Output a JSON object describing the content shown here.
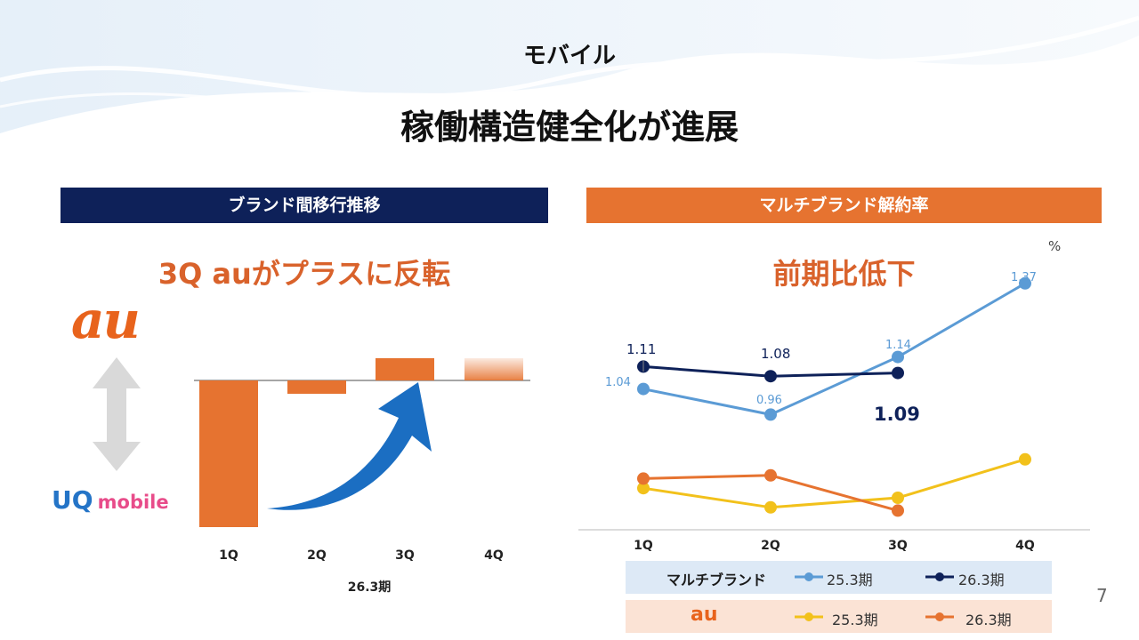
{
  "section_label": "モバイル",
  "headline": "稼働構造健全化が進展",
  "left_panel": {
    "header": "ブランド間移行推移",
    "subtitle": "3Q auがプラスに反転",
    "au_logo": "au",
    "uq_logo_part1": "UQ",
    "uq_logo_part2": "mobile"
  },
  "right_panel": {
    "header": "マルチブランド解約率",
    "subtitle": "前期比低下",
    "unit": "%",
    "legend": {
      "multi_label": "マルチブランド",
      "au_label": "au",
      "multi_prev": "25.3期",
      "multi_curr": "26.3期",
      "au_prev": "25.3期",
      "au_curr": "26.3期"
    }
  },
  "page_number": "7",
  "colors": {
    "navy": "#0e2159",
    "orange": "#e67330",
    "light_blue": "#5b9bd5",
    "yellow": "#f2c11b",
    "arrow_blue": "#1b6ec2"
  },
  "chart_data": [
    {
      "type": "bar",
      "title": "ブランド間移行推移",
      "categories": [
        "1Q",
        "2Q",
        "3Q",
        "4Q"
      ],
      "xlabel": "26.3期",
      "values": [
        -3.3,
        -0.3,
        0.5,
        0.5
      ],
      "note": "Relative net migration (au vs UQ mobile); 4Q is a faded placeholder bar. No y-axis shown; values estimated in relative units.",
      "ylim": [
        -3.5,
        1
      ]
    },
    {
      "type": "line",
      "title": "マルチブランド解約率",
      "categories": [
        "1Q",
        "2Q",
        "3Q",
        "4Q"
      ],
      "unit": "%",
      "series": [
        {
          "name": "マルチブランド 25.3期",
          "values": [
            1.04,
            0.96,
            1.14,
            1.37
          ],
          "labels": [
            "1.04",
            "0.96",
            "1.14",
            "1.37"
          ]
        },
        {
          "name": "マルチブランド 26.3期",
          "values": [
            1.11,
            1.08,
            1.09,
            null
          ],
          "labels": [
            "1.11",
            "1.08",
            "1.09",
            ""
          ]
        },
        {
          "name": "au 25.3期",
          "values": [
            0.73,
            0.67,
            0.7,
            0.82
          ],
          "labels": [
            "",
            "",
            "",
            ""
          ]
        },
        {
          "name": "au 26.3期",
          "values": [
            0.76,
            0.77,
            0.66,
            null
          ],
          "labels": [
            "",
            "",
            "",
            ""
          ]
        }
      ],
      "ylim": [
        0.6,
        1.45
      ]
    }
  ]
}
